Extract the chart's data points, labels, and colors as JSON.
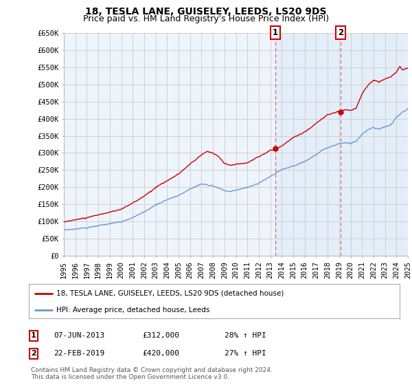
{
  "title": "18, TESLA LANE, GUISELEY, LEEDS, LS20 9DS",
  "subtitle": "Price paid vs. HM Land Registry's House Price Index (HPI)",
  "ylabel_ticks": [
    "£0",
    "£50K",
    "£100K",
    "£150K",
    "£200K",
    "£250K",
    "£300K",
    "£350K",
    "£400K",
    "£450K",
    "£500K",
    "£550K",
    "£600K",
    "£650K"
  ],
  "ytick_values": [
    0,
    50000,
    100000,
    150000,
    200000,
    250000,
    300000,
    350000,
    400000,
    450000,
    500000,
    550000,
    600000,
    650000
  ],
  "x_start_year": 1995,
  "x_end_year": 2025,
  "sale1_date": 2013.44,
  "sale1_price": 312000,
  "sale1_label": "1",
  "sale1_text": "07-JUN-2013",
  "sale1_amount": "£312,000",
  "sale1_pct": "28% ↑ HPI",
  "sale2_date": 2019.13,
  "sale2_price": 420000,
  "sale2_label": "2",
  "sale2_text": "22-FEB-2019",
  "sale2_amount": "£420,000",
  "sale2_pct": "27% ↑ HPI",
  "red_line_color": "#cc0000",
  "blue_line_color": "#6699cc",
  "background_color": "#ffffff",
  "plot_bg_color": "#ffffff",
  "fill_bg_color": "#ddeeff",
  "grid_color": "#cccccc",
  "vline_color": "#dd6666",
  "legend_label_red": "18, TESLA LANE, GUISELEY, LEEDS, LS20 9DS (detached house)",
  "legend_label_blue": "HPI: Average price, detached house, Leeds",
  "footnote": "Contains HM Land Registry data © Crown copyright and database right 2024.\nThis data is licensed under the Open Government Licence v3.0.",
  "title_fontsize": 10,
  "subtitle_fontsize": 9,
  "tick_fontsize": 7.5,
  "legend_fontsize": 7.5,
  "annotation_fontsize": 8,
  "footnote_fontsize": 6.5
}
